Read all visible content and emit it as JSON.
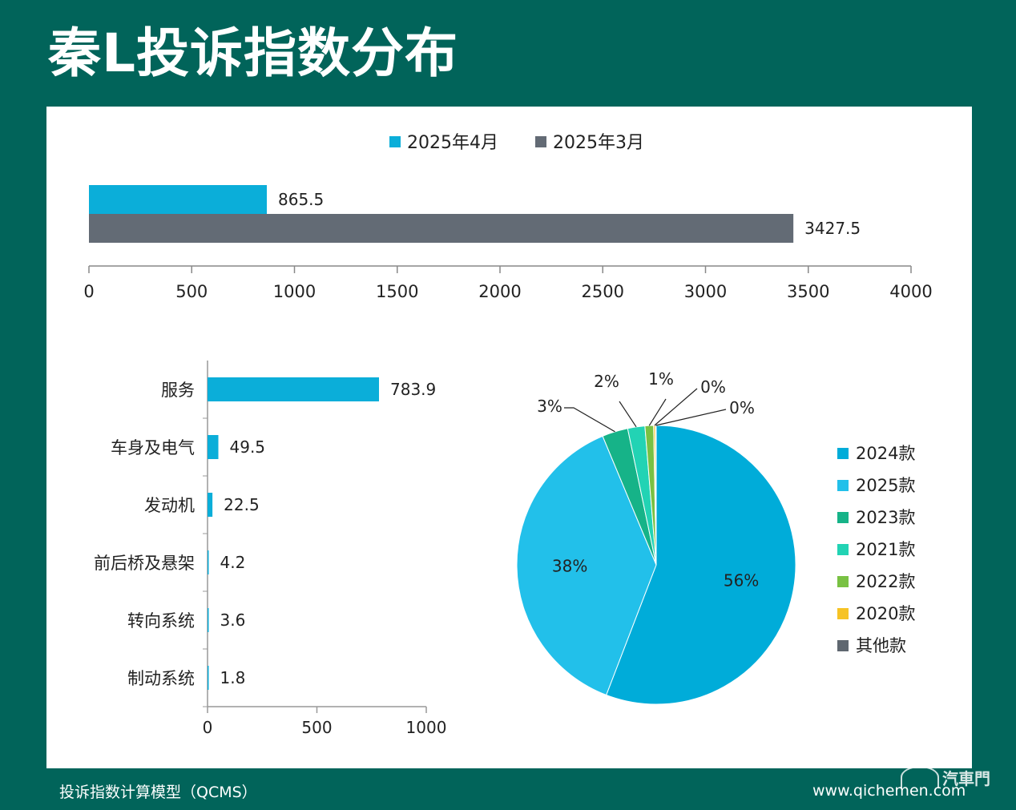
{
  "title": "秦L投诉指数分布",
  "footer": {
    "source": "投诉指数计算模型（QCMS）",
    "url": "www.qichemen.com",
    "logo_text": "汽車門"
  },
  "colors": {
    "background": "#01645a",
    "apr": "#0baed9",
    "mar": "#636b75"
  },
  "chart_data": [
    {
      "type": "bar",
      "orientation": "horizontal",
      "series": [
        {
          "name": "2025年4月",
          "values": [
            865.5
          ],
          "color": "#0baed9"
        },
        {
          "name": "2025年3月",
          "values": [
            3427.5
          ],
          "color": "#636b75"
        }
      ],
      "xlim": [
        0,
        4000
      ],
      "xticks": [
        0,
        500,
        1000,
        1500,
        2000,
        2500,
        3000,
        3500,
        4000
      ],
      "legend": "top-center",
      "grid": false
    },
    {
      "type": "bar",
      "orientation": "horizontal",
      "categories": [
        "服务",
        "车身及电气",
        "发动机",
        "前后桥及悬架",
        "转向系统",
        "制动系统"
      ],
      "values": [
        783.9,
        49.5,
        22.5,
        4.2,
        3.6,
        1.8
      ],
      "color": "#0baed9",
      "xlim": [
        0,
        1000
      ],
      "xticks": [
        0,
        500,
        1000
      ],
      "grid": false
    },
    {
      "type": "pie",
      "slices": [
        {
          "name": "2024款",
          "value": 56,
          "label": "56%",
          "color": "#00acd9"
        },
        {
          "name": "2025款",
          "value": 38,
          "label": "38%",
          "color": "#22c0ea"
        },
        {
          "name": "2023款",
          "value": 3,
          "label": "3%",
          "color": "#16b388"
        },
        {
          "name": "2021款",
          "value": 2,
          "label": "2%",
          "color": "#22d3b4"
        },
        {
          "name": "2022款",
          "value": 1,
          "label": "1%",
          "color": "#79c143"
        },
        {
          "name": "2020款",
          "value": 0.2,
          "label": "0%",
          "color": "#f6c325"
        },
        {
          "name": "其他款",
          "value": 0.1,
          "label": "0%",
          "color": "#5f6770"
        }
      ],
      "legend": "right"
    }
  ]
}
